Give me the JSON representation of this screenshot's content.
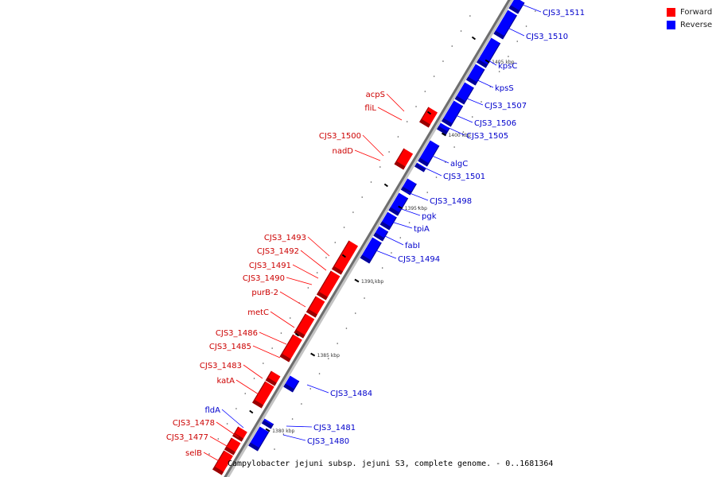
{
  "legend": {
    "forward_label": "Forward",
    "reverse_label": "Reverse",
    "forward_color": "#ff0000",
    "reverse_color": "#0000ff"
  },
  "caption": "Campylobacter jejuni subsp. jejuni S3, complete genome. - 0..1681364",
  "ticks": [
    {
      "label": "1405 kbp"
    },
    {
      "label": "1400 kbp"
    },
    {
      "label": "1395 kbp"
    },
    {
      "label": "1390 kbp"
    },
    {
      "label": "1385 kbp"
    },
    {
      "label": "1380 kbp"
    }
  ],
  "reverse_genes": [
    {
      "name": "CJS3_1511"
    },
    {
      "name": "CJS3_1510"
    },
    {
      "name": "kpsC"
    },
    {
      "name": "kpsS"
    },
    {
      "name": "CJS3_1507"
    },
    {
      "name": "CJS3_1506"
    },
    {
      "name": "CJS3_1505"
    },
    {
      "name": "algC"
    },
    {
      "name": "CJS3_1501"
    },
    {
      "name": "CJS3_1498"
    },
    {
      "name": "pgk"
    },
    {
      "name": "tpiA"
    },
    {
      "name": "fabI"
    },
    {
      "name": "CJS3_1494"
    },
    {
      "name": "CJS3_1484"
    },
    {
      "name": "CJS3_1481"
    },
    {
      "name": "CJS3_1480"
    }
  ],
  "forward_genes": [
    {
      "name": "acpS"
    },
    {
      "name": "fliL"
    },
    {
      "name": "CJS3_1500"
    },
    {
      "name": "nadD"
    },
    {
      "name": "CJS3_1493"
    },
    {
      "name": "CJS3_1492"
    },
    {
      "name": "CJS3_1491"
    },
    {
      "name": "CJS3_1490"
    },
    {
      "name": "purB-2"
    },
    {
      "name": "metC"
    },
    {
      "name": "CJS3_1486"
    },
    {
      "name": "CJS3_1485"
    },
    {
      "name": "CJS3_1483"
    },
    {
      "name": "katA"
    },
    {
      "name": "fldA"
    },
    {
      "name": "CJS3_1478"
    },
    {
      "name": "CJS3_1477"
    },
    {
      "name": "selB"
    }
  ]
}
